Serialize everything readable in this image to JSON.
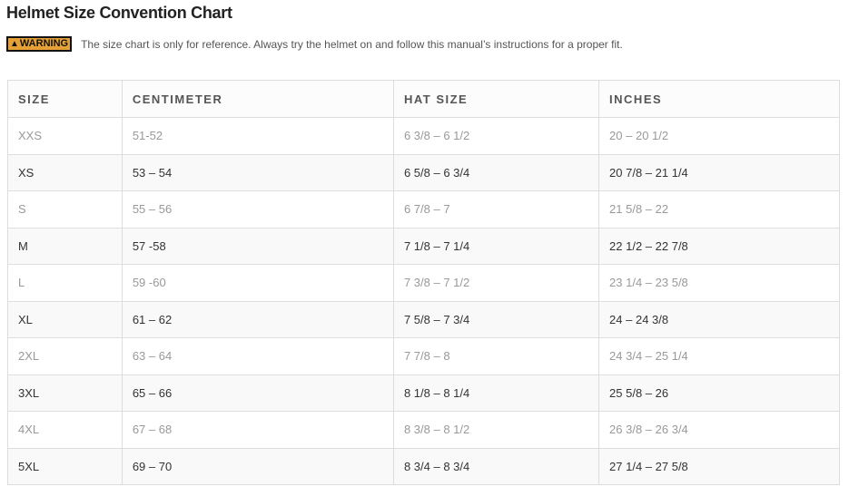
{
  "title": "Helmet Size Convention Chart",
  "warning": {
    "badge": "WARNING",
    "icon": "warning-triangle-icon",
    "text": "The size chart is only for reference. Always try the helmet on and follow this manual’s instructions for a proper fit.",
    "badge_color": "#e5a136"
  },
  "table": {
    "headers": [
      "SIZE",
      "CENTIMETER",
      "HAT SIZE",
      "INCHES"
    ],
    "rows": [
      [
        "XXS",
        "51-52",
        "6 3/8 – 6 1/2",
        "20 – 20 1/2"
      ],
      [
        "XS",
        "53 – 54",
        "6 5/8 – 6 3/4",
        "20 7/8 – 21 1/4"
      ],
      [
        "S",
        "55 – 56",
        "6 7/8 – 7",
        "21 5/8 – 22"
      ],
      [
        "M",
        "57 -58",
        "7 1/8 – 7 1/4",
        "22 1/2 – 22 7/8"
      ],
      [
        "L",
        "59 -60",
        "7 3/8 – 7 1/2",
        "23 1/4 – 23 5/8"
      ],
      [
        "XL",
        "61 – 62",
        "7 5/8 – 7 3/4",
        "24 – 24 3/8"
      ],
      [
        "2XL",
        "63 – 64",
        "7 7/8 – 8",
        "24 3/4 – 25 1/4"
      ],
      [
        "3XL",
        "65 – 66",
        "8 1/8 – 8 1/4",
        "25 5/8 – 26"
      ],
      [
        "4XL",
        "67 – 68",
        "8 3/8 – 8 1/2",
        "26 3/8 – 26 3/4"
      ],
      [
        "5XL",
        "69 – 70",
        "8 3/4 – 8 3/4",
        "27 1/4 – 27 5/8"
      ]
    ]
  }
}
